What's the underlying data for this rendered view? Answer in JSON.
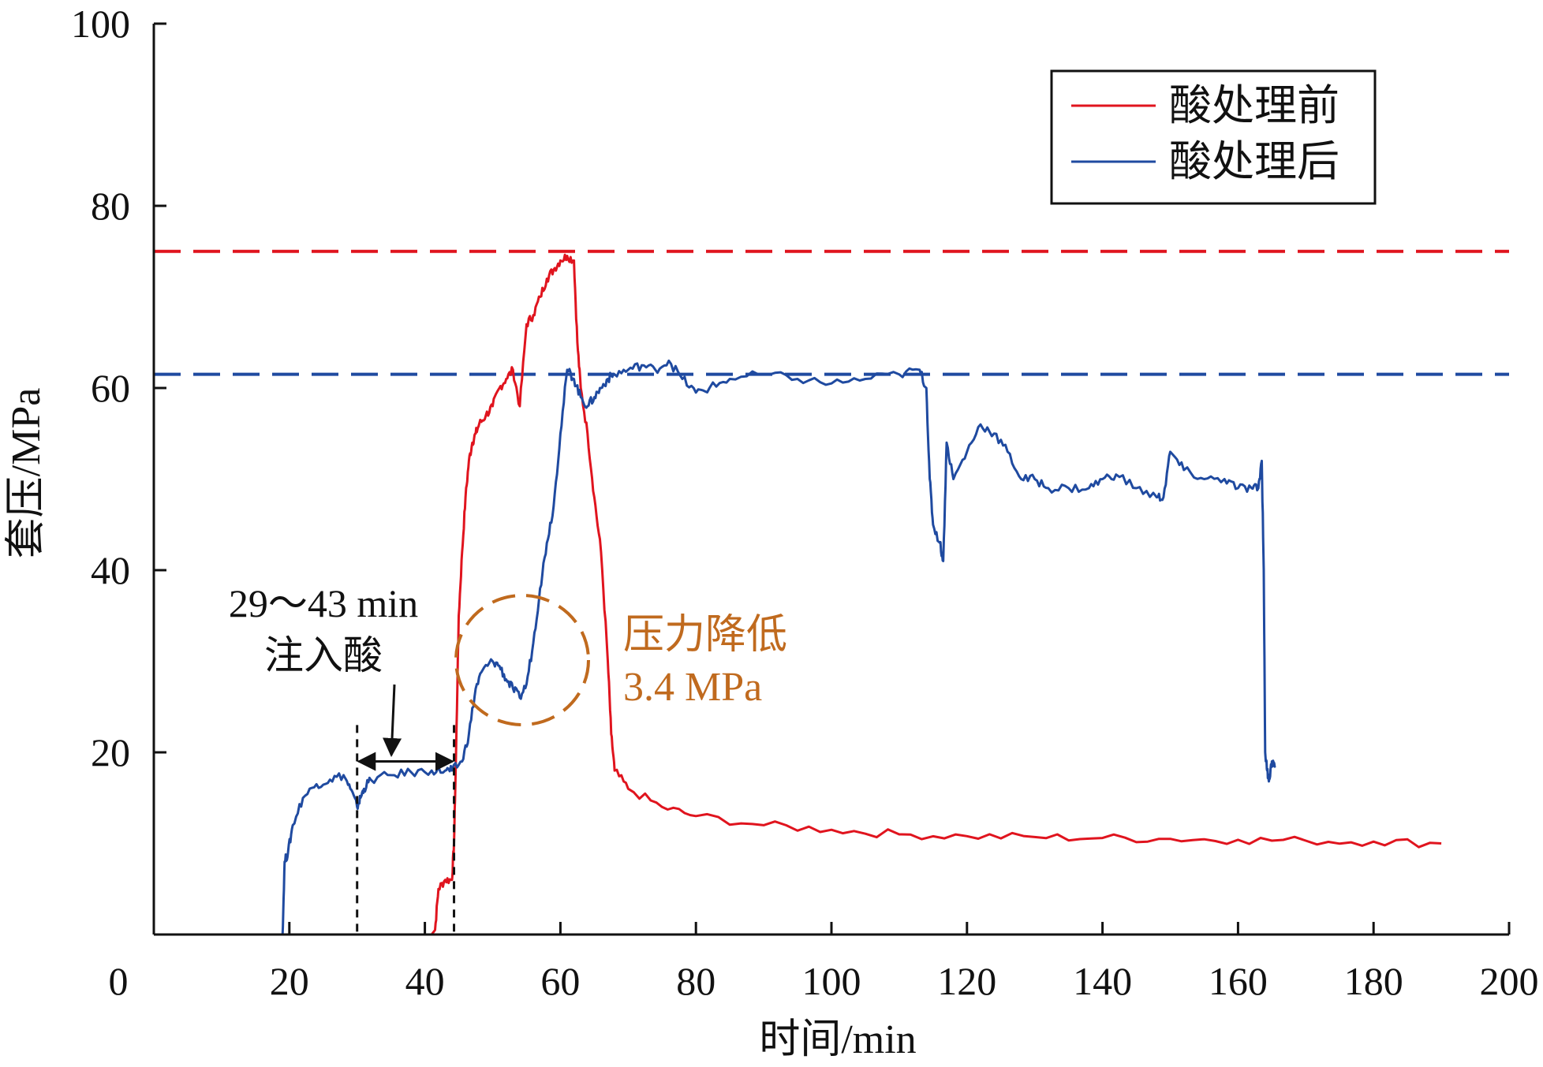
{
  "chart_data": {
    "type": "line",
    "xlabel": "时间/min",
    "ylabel": "套压/MPa",
    "xlim": [
      0,
      200
    ],
    "ylim": [
      0,
      100
    ],
    "xticks": [
      0,
      20,
      40,
      60,
      80,
      100,
      120,
      140,
      160,
      180,
      200
    ],
    "yticks": [
      20,
      40,
      60,
      80,
      100
    ],
    "grid": false,
    "legend_position": "top-right",
    "series": [
      {
        "name": "酸处理前",
        "color": "#e0141e",
        "x": [
          41,
          41.5,
          42,
          43,
          44,
          44.3,
          44.6,
          45,
          45.5,
          46,
          46.5,
          47,
          47.5,
          48,
          49,
          50,
          51,
          52,
          53,
          54,
          55,
          56,
          57,
          58,
          59,
          60,
          61,
          62,
          62.5,
          63,
          64,
          65,
          66,
          67,
          67.5,
          68,
          70,
          75,
          80,
          90,
          100,
          110,
          120,
          130,
          140,
          150,
          160,
          170,
          180,
          190
        ],
        "y": [
          0,
          0.5,
          5,
          6,
          6,
          10,
          20,
          35,
          42,
          48,
          52,
          54,
          55,
          56,
          57,
          58,
          60,
          61,
          62,
          58,
          67,
          68,
          70,
          72,
          73,
          74,
          74.5,
          74,
          65,
          60,
          55,
          48,
          42,
          30,
          22,
          18,
          16,
          14,
          13,
          12,
          11.5,
          11,
          10.8,
          10.7,
          10.6,
          10.5,
          10.4,
          10.3,
          10.2,
          10
        ]
      },
      {
        "name": "酸处理后",
        "color": "#1f4aa0",
        "x": [
          19,
          19.3,
          19.8,
          20.5,
          22,
          24,
          26,
          28,
          29,
          30,
          30.5,
          31,
          32,
          35,
          38,
          41,
          43,
          44,
          45.5,
          46.5,
          47.5,
          48.5,
          50,
          51,
          52,
          53,
          54,
          55,
          56,
          57,
          58,
          59,
          60,
          61,
          62,
          63,
          64,
          65,
          66,
          67,
          68,
          70,
          72,
          74,
          76,
          78,
          80,
          82,
          85,
          90,
          95,
          100,
          105,
          110,
          113,
          114,
          114.5,
          115,
          116,
          116.5,
          117,
          118,
          120,
          122,
          124,
          126,
          128,
          130,
          132,
          135,
          138,
          140,
          142,
          145,
          148,
          149,
          150,
          152,
          155,
          158,
          160,
          162,
          163,
          163.5,
          163.8,
          164,
          164.3,
          164.6,
          165,
          165.5
        ],
        "y": [
          0,
          8,
          9,
          12,
          15,
          16.5,
          17,
          17.5,
          16,
          14,
          15,
          16,
          17,
          17.5,
          17.8,
          18,
          18,
          18,
          19,
          22,
          27,
          29,
          30,
          29.5,
          28,
          27,
          26,
          27.5,
          32,
          38,
          43,
          47,
          55,
          62,
          61,
          59,
          58,
          59,
          60,
          61,
          61.5,
          62,
          62.5,
          62,
          63,
          61,
          59.5,
          60,
          61,
          61.5,
          61,
          60.5,
          61,
          61.5,
          62,
          60,
          50,
          45,
          43,
          41,
          54,
          50,
          53,
          56,
          55,
          53,
          50,
          50,
          49,
          49,
          49,
          50,
          50.5,
          49,
          48,
          48,
          53,
          51,
          50,
          50,
          49,
          49,
          49,
          52,
          40,
          20,
          18,
          17,
          19,
          18.5
        ]
      }
    ],
    "reference_lines": [
      {
        "y": 75,
        "color": "#e0141e",
        "style": "dashed"
      },
      {
        "y": 61.5,
        "color": "#1f4aa0",
        "style": "dashed"
      }
    ],
    "vertical_markers": [
      30,
      44.3
    ],
    "annotations": [
      {
        "lines": [
          "29～43 min",
          "注入酸"
        ],
        "color": "#111111"
      },
      {
        "lines": [
          "压力降低",
          "3.4 MPa"
        ],
        "color": "#c06a1e"
      }
    ]
  }
}
